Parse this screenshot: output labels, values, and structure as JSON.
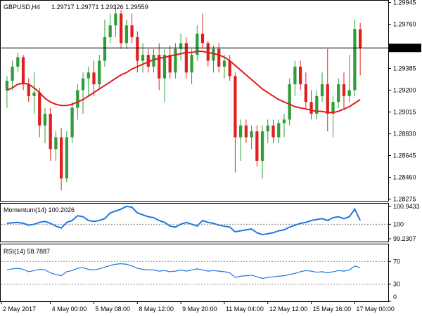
{
  "chart_data": {
    "type": "candlestick",
    "main": {
      "title": "GBPUSD,H4",
      "ohlc_text": "1.29717 1.29771 1.29326 1.29559",
      "current_price": 1.29559,
      "current_price_label": "1.29559",
      "ylim": [
        1.2826,
        1.2996
      ],
      "yticks": [
        1.29945,
        1.2976,
        1.29385,
        1.292,
        1.29015,
        1.2883,
        1.28645,
        1.2846,
        1.28275
      ],
      "ytick_labels": [
        "1.29945",
        "1.29760",
        "1.29385",
        "1.29200",
        "1.29015",
        "1.28830",
        "1.28645",
        "1.28460",
        "1.28275"
      ],
      "sma_color": "#e31a1a",
      "bull_color": "#2e9d3a",
      "bear_color": "#e02020",
      "candles": [
        [
          1.292,
          1.2932,
          1.2905,
          1.2928
        ],
        [
          1.2928,
          1.2945,
          1.292,
          1.294
        ],
        [
          1.294,
          1.2952,
          1.2935,
          1.2948
        ],
        [
          1.2948,
          1.295,
          1.292,
          1.2925
        ],
        [
          1.2925,
          1.293,
          1.291,
          1.2915
        ],
        [
          1.2915,
          1.2935,
          1.29,
          1.2918
        ],
        [
          1.2918,
          1.2922,
          1.288,
          1.289
        ],
        [
          1.289,
          1.2905,
          1.2875,
          1.29
        ],
        [
          1.29,
          1.2905,
          1.286,
          1.287
        ],
        [
          1.287,
          1.2885,
          1.286,
          1.288
        ],
        [
          1.288,
          1.2888,
          1.2835,
          1.2845
        ],
        [
          1.2845,
          1.2885,
          1.2842,
          1.288
        ],
        [
          1.288,
          1.291,
          1.2875,
          1.2905
        ],
        [
          1.2905,
          1.2925,
          1.2895,
          1.292
        ],
        [
          1.292,
          1.2935,
          1.29,
          1.293
        ],
        [
          1.293,
          1.294,
          1.2915,
          1.2935
        ],
        [
          1.2935,
          1.2945,
          1.2915,
          1.2925
        ],
        [
          1.2925,
          1.295,
          1.292,
          1.2945
        ],
        [
          1.2945,
          1.298,
          1.294,
          1.2965
        ],
        [
          1.2965,
          1.2985,
          1.296,
          1.2975
        ],
        [
          1.2975,
          1.299,
          1.2965,
          1.2985
        ],
        [
          1.2985,
          1.2988,
          1.2955,
          1.296
        ],
        [
          1.296,
          1.298,
          1.2955,
          1.2975
        ],
        [
          1.2975,
          1.2985,
          1.296,
          1.2965
        ],
        [
          1.2965,
          1.297,
          1.2935,
          1.2945
        ],
        [
          1.2945,
          1.296,
          1.2935,
          1.295
        ],
        [
          1.295,
          1.2955,
          1.2935,
          1.294
        ],
        [
          1.294,
          1.2955,
          1.2935,
          1.295
        ],
        [
          1.295,
          1.296,
          1.292,
          1.293
        ],
        [
          1.293,
          1.2955,
          1.291,
          1.295
        ],
        [
          1.295,
          1.2958,
          1.293,
          1.2935
        ],
        [
          1.2935,
          1.296,
          1.293,
          1.2955
        ],
        [
          1.2955,
          1.2968,
          1.2945,
          1.296
        ],
        [
          1.296,
          1.2965,
          1.293,
          1.2935
        ],
        [
          1.2935,
          1.2955,
          1.2925,
          1.295
        ],
        [
          1.295,
          1.2975,
          1.2945,
          1.2968
        ],
        [
          1.2968,
          1.2985,
          1.2955,
          1.296
        ],
        [
          1.296,
          1.2962,
          1.294,
          1.2945
        ],
        [
          1.2945,
          1.2958,
          1.2935,
          1.2955
        ],
        [
          1.2955,
          1.296,
          1.2935,
          1.294
        ],
        [
          1.294,
          1.295,
          1.293,
          1.2945
        ],
        [
          1.2945,
          1.295,
          1.2928,
          1.2932
        ],
        [
          1.2932,
          1.2935,
          1.285,
          1.288
        ],
        [
          1.288,
          1.2895,
          1.286,
          1.289
        ],
        [
          1.289,
          1.2895,
          1.2875,
          1.288
        ],
        [
          1.288,
          1.289,
          1.287,
          1.2885
        ],
        [
          1.2885,
          1.289,
          1.2855,
          1.286
        ],
        [
          1.286,
          1.289,
          1.2845,
          1.2885
        ],
        [
          1.2885,
          1.2895,
          1.2875,
          1.289
        ],
        [
          1.289,
          1.2895,
          1.2875,
          1.288
        ],
        [
          1.288,
          1.2895,
          1.2875,
          1.2892
        ],
        [
          1.2892,
          1.29,
          1.288,
          1.2895
        ],
        [
          1.2895,
          1.293,
          1.289,
          1.2925
        ],
        [
          1.2925,
          1.2945,
          1.2915,
          1.294
        ],
        [
          1.294,
          1.2945,
          1.292,
          1.2925
        ],
        [
          1.2925,
          1.2935,
          1.2905,
          1.291
        ],
        [
          1.291,
          1.292,
          1.2895,
          1.29
        ],
        [
          1.29,
          1.292,
          1.2895,
          1.2915
        ],
        [
          1.2915,
          1.2935,
          1.291,
          1.2925
        ],
        [
          1.2925,
          1.2955,
          1.2885,
          1.29
        ],
        [
          1.29,
          1.2915,
          1.288,
          1.291
        ],
        [
          1.291,
          1.293,
          1.2905,
          1.2925
        ],
        [
          1.2925,
          1.2935,
          1.2905,
          1.2915
        ],
        [
          1.2915,
          1.295,
          1.291,
          1.292
        ],
        [
          1.292,
          1.298,
          1.2915,
          1.2972
        ],
        [
          1.29717,
          1.29771,
          1.29326,
          1.29559
        ]
      ],
      "sma": [
        1.292,
        1.2922,
        1.2925,
        1.2926,
        1.2925,
        1.2922,
        1.2918,
        1.2913,
        1.291,
        1.2908,
        1.2907,
        1.2907,
        1.2908,
        1.291,
        1.2912,
        1.2915,
        1.2918,
        1.2921,
        1.2924,
        1.2927,
        1.293,
        1.2933,
        1.2935,
        1.2938,
        1.294,
        1.2942,
        1.2944,
        1.2946,
        1.2947,
        1.2948,
        1.2949,
        1.295,
        1.2951,
        1.2952,
        1.2952,
        1.2953,
        1.2953,
        1.2952,
        1.2951,
        1.295,
        1.2948,
        1.2945,
        1.2941,
        1.2937,
        1.2933,
        1.2929,
        1.2925,
        1.2921,
        1.2918,
        1.2915,
        1.2912,
        1.291,
        1.2908,
        1.2906,
        1.2905,
        1.2904,
        1.2903,
        1.2902,
        1.2902,
        1.2901,
        1.2901,
        1.2902,
        1.2904,
        1.2906,
        1.2909,
        1.2912
      ]
    },
    "momentum": {
      "title": "Momentum(14) 100.2026",
      "ylim": [
        99.2307,
        100.9433
      ],
      "yticks": [
        100.9433,
        100,
        99.2307
      ],
      "ytick_labels": [
        "100.9433",
        "100",
        "99.2307"
      ],
      "level": 100,
      "color": "#1f78e0",
      "values": [
        100.05,
        100.08,
        100.1,
        100.05,
        99.95,
        100.0,
        100.1,
        100.15,
        100.05,
        99.9,
        99.8,
        100.1,
        100.2,
        100.45,
        100.4,
        100.2,
        100.15,
        100.2,
        100.3,
        100.6,
        100.7,
        100.8,
        100.95,
        100.9,
        100.6,
        100.5,
        100.4,
        100.35,
        100.2,
        100.1,
        99.9,
        99.85,
        100.0,
        100.1,
        100.0,
        99.9,
        100.2,
        100.1,
        100.05,
        99.95,
        99.9,
        99.85,
        99.6,
        99.65,
        99.7,
        99.75,
        99.55,
        99.45,
        99.5,
        99.55,
        99.65,
        99.7,
        99.85,
        99.95,
        100.05,
        100.1,
        100.2,
        100.25,
        100.3,
        100.2,
        100.35,
        100.4,
        100.3,
        100.4,
        100.8,
        100.2
      ]
    },
    "rsi": {
      "title": "RSI(14) 58.7887",
      "ylim": [
        0,
        100
      ],
      "yticks": [
        70,
        30,
        0
      ],
      "ytick_labels": [
        "70",
        "30",
        "0"
      ],
      "levels": [
        70,
        30
      ],
      "color": "#1f78e0",
      "values": [
        55,
        57,
        58,
        56,
        52,
        54,
        56,
        55,
        50,
        47,
        45,
        52,
        54,
        58,
        59,
        56,
        55,
        57,
        60,
        63,
        65,
        66,
        65,
        62,
        58,
        56,
        55,
        55,
        53,
        54,
        52,
        53,
        55,
        53,
        55,
        57,
        55,
        53,
        54,
        53,
        52,
        50,
        42,
        44,
        45,
        46,
        43,
        40,
        42,
        43,
        44,
        45,
        47,
        49,
        52,
        54,
        53,
        51,
        52,
        50,
        52,
        54,
        53,
        55,
        62,
        59
      ]
    },
    "xaxis": {
      "labels": [
        "2 May 2017",
        "4 May 00:00",
        "5 May 08:00",
        "8 May 12:00",
        "9 May 20:00",
        "11 May 04:00",
        "12 May 12:00",
        "15 May 16:00",
        "17 May 00:00"
      ],
      "label_candle_index": [
        0,
        8,
        16,
        24,
        32,
        40,
        48,
        56,
        64
      ]
    }
  }
}
